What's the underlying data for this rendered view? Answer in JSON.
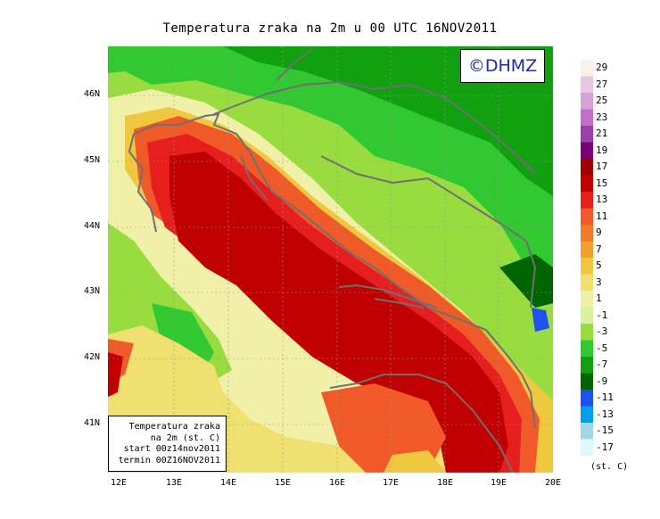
{
  "title": "Temperatura zraka na 2m u 00 UTC 16NOV2011",
  "logo_text": "©DHMZ",
  "info_box": {
    "line1": "Temperatura zraka",
    "line2": "na 2m (st. C)",
    "line3": "start 00z14nov2011",
    "line4": "termin 00Z16NOV2011"
  },
  "x_ticks": [
    "12E",
    "13E",
    "14E",
    "15E",
    "16E",
    "17E",
    "18E",
    "19E",
    "20E"
  ],
  "y_ticks": [
    "46N",
    "45N",
    "44N",
    "43N",
    "42N",
    "41N"
  ],
  "legend": {
    "unit": "(st. C)",
    "labels": [
      "29",
      "27",
      "25",
      "23",
      "21",
      "19",
      "17",
      "15",
      "13",
      "11",
      "9",
      "7",
      "5",
      "3",
      "1",
      "-1",
      "-3",
      "-5",
      "-7",
      "-9",
      "-11",
      "-13",
      "-15",
      "-17"
    ],
    "colors": [
      "#fdf0e6",
      "#e8c8e0",
      "#d6a3d6",
      "#c070c8",
      "#9b3fa8",
      "#7a007a",
      "#a00000",
      "#c00000",
      "#e61e1e",
      "#f05a28",
      "#f07a28",
      "#f0a030",
      "#f0c840",
      "#f0e070",
      "#f0f0a8",
      "#d8f0a0",
      "#98dc40",
      "#32c832",
      "#10a010",
      "#006400",
      "#2050f0",
      "#00a0e8",
      "#a0d8e8",
      "#e0f8f8"
    ]
  }
}
